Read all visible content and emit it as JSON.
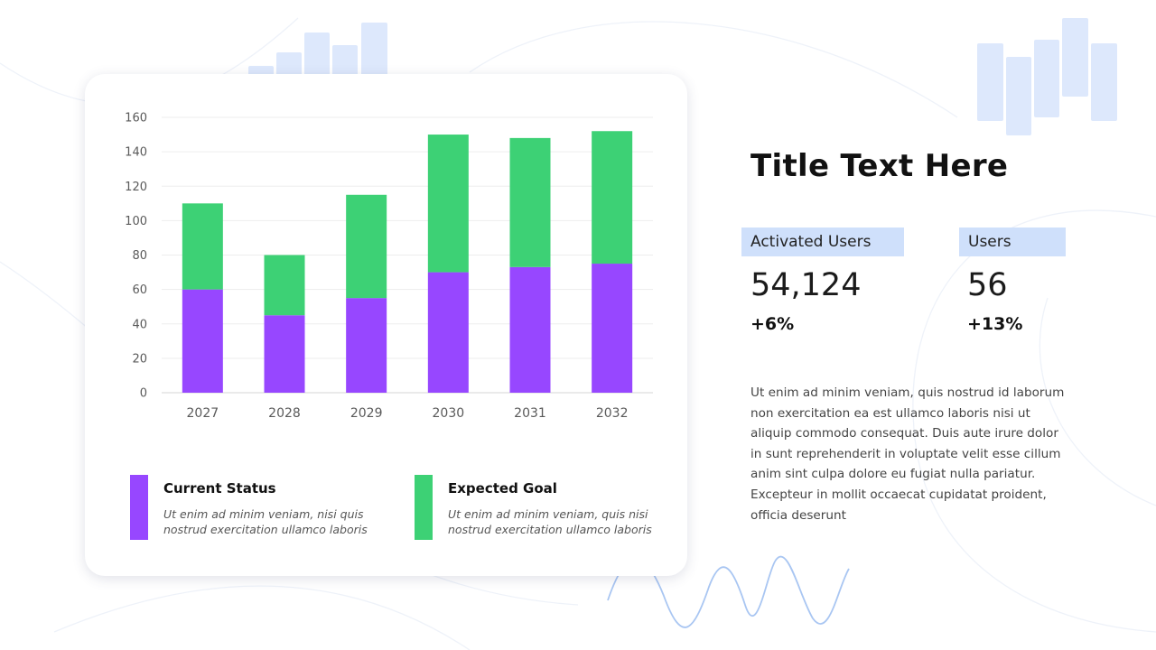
{
  "colors": {
    "current": "#9747ff",
    "expected": "#3dd175",
    "accent_light": "#cfe0fb",
    "deco_bars": "#dde8fc",
    "wave": "#a9c6f2"
  },
  "title": "Title Text Here",
  "stats": [
    {
      "label": "Activated Users",
      "value": "54,124",
      "change": "+6%"
    },
    {
      "label": "Users",
      "value": "56",
      "change": "+13%"
    }
  ],
  "body_text": "Ut enim ad minim veniam, quis nostrud id laborum non exercitation ea est ullamco laboris nisi ut aliquip commodo consequat. Duis aute irure dolor in sunt reprehenderit in voluptate velit esse cillum anim sint culpa dolore eu fugiat nulla pariatur. Excepteur in mollit occaecat cupidatat proident, officia deserunt",
  "legend": [
    {
      "title": "Current Status",
      "desc": "Ut enim ad minim veniam, nisi quis nostrud exercitation ullamco laboris",
      "color_key": "current"
    },
    {
      "title": "Expected Goal",
      "desc": "Ut enim ad minim veniam, quis nisi nostrud exercitation ullamco laboris",
      "color_key": "expected"
    }
  ],
  "chart_data": {
    "type": "bar",
    "stacked": true,
    "categories": [
      "2027",
      "2028",
      "2029",
      "2030",
      "2031",
      "2032"
    ],
    "series": [
      {
        "name": "Current Status",
        "values": [
          60,
          45,
          55,
          70,
          73,
          75
        ],
        "color": "#9747ff"
      },
      {
        "name": "Expected Goal",
        "values": [
          50,
          35,
          60,
          80,
          75,
          77
        ],
        "color": "#3dd175"
      }
    ],
    "ylim": [
      0,
      160
    ],
    "yticks": [
      0,
      20,
      40,
      60,
      80,
      100,
      120,
      140,
      160
    ],
    "grid": true,
    "legend_position": "bottom"
  }
}
